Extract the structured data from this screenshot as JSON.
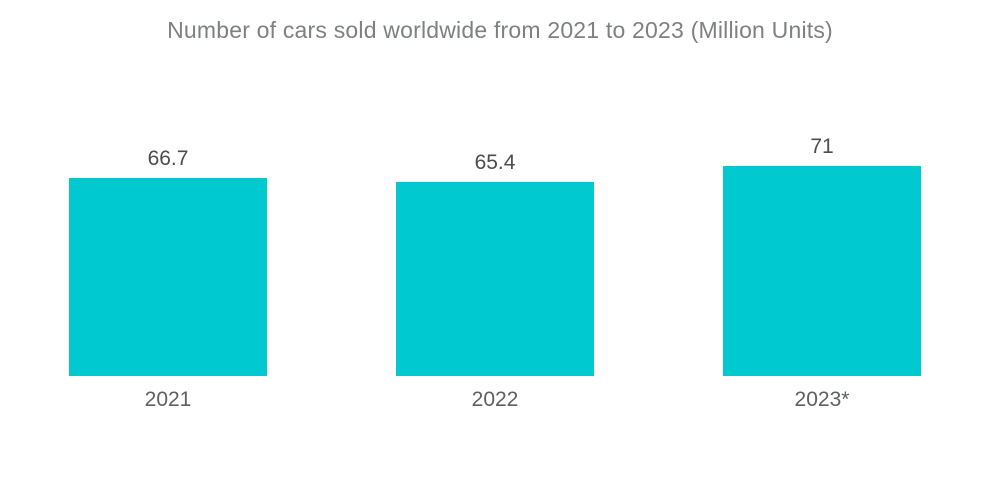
{
  "chart_data": {
    "type": "bar",
    "title": "Number of cars sold worldwide from 2021 to 2023 (Million Units)",
    "categories": [
      "2021",
      "2022",
      "2023*"
    ],
    "values": [
      66.7,
      65.4,
      71
    ],
    "xlabel": "",
    "ylabel": "",
    "ylim": [
      0,
      126.8
    ],
    "grid": false,
    "legend": false,
    "bar_color": "#00C9D0",
    "title_color": "#7e8083",
    "value_label_color": "#4b4d50",
    "category_label_color": "#5e6063",
    "background_color": "#ffffff"
  }
}
